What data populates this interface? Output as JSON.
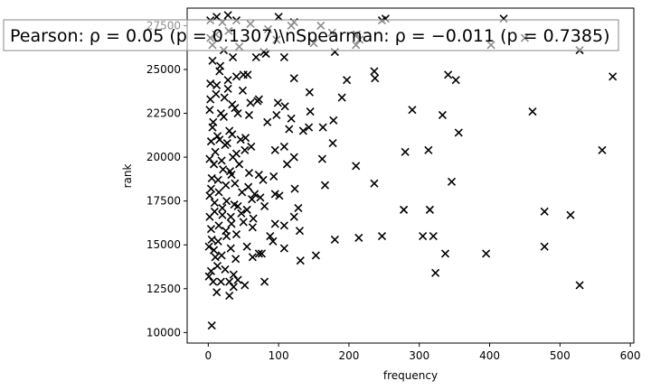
{
  "chart_data": {
    "type": "scatter",
    "title": "",
    "xlabel": "frequency",
    "ylabel": "rank",
    "xlim": [
      -30,
      605
    ],
    "ylim": [
      9400,
      28500
    ],
    "xticks": [
      0,
      100,
      200,
      300,
      400,
      500,
      600
    ],
    "xtick_labels": [
      "0",
      "100",
      "200",
      "300",
      "400",
      "500",
      "600"
    ],
    "yticks": [
      10000,
      12500,
      15000,
      17500,
      20000,
      22500,
      25000,
      27500
    ],
    "ytick_labels": [
      "10000",
      "12500",
      "15000",
      "17500",
      "20000",
      "22500",
      "25000",
      "27500"
    ],
    "grid": false,
    "legend": "none",
    "marker": "x",
    "marker_color": "#000000",
    "annotation": "Pearson: ρ = 0.05 (p = 0.1307)\\nSpearman: ρ = −0.011 (p = 0.7385)",
    "series": [
      {
        "points": [
          [
            575,
            24600
          ],
          [
            560,
            20400
          ],
          [
            528,
            26100
          ],
          [
            528,
            12700
          ],
          [
            515,
            16700
          ],
          [
            478,
            16900
          ],
          [
            478,
            14900
          ],
          [
            461,
            22600
          ],
          [
            450,
            26800
          ],
          [
            420,
            27900
          ],
          [
            402,
            26400
          ],
          [
            395,
            14500
          ],
          [
            356,
            21400
          ],
          [
            352,
            24400
          ],
          [
            346,
            18600
          ],
          [
            341,
            24700
          ],
          [
            333,
            22400
          ],
          [
            337,
            14500
          ],
          [
            323,
            13400
          ],
          [
            320,
            15500
          ],
          [
            315,
            17000
          ],
          [
            313,
            20400
          ],
          [
            305,
            15500
          ],
          [
            290,
            22700
          ],
          [
            280,
            20300
          ],
          [
            278,
            17000
          ],
          [
            252,
            27900
          ],
          [
            247,
            15500
          ],
          [
            237,
            24500
          ],
          [
            236,
            24900
          ],
          [
            236,
            18500
          ],
          [
            214,
            15400
          ],
          [
            215,
            26700
          ],
          [
            210,
            26400
          ],
          [
            210,
            19500
          ],
          [
            197,
            24400
          ],
          [
            190,
            23400
          ],
          [
            180,
            26000
          ],
          [
            177,
            20800
          ],
          [
            178,
            22100
          ],
          [
            180,
            15300
          ],
          [
            176,
            27100
          ],
          [
            166,
            18400
          ],
          [
            163,
            21700
          ],
          [
            162,
            19900
          ],
          [
            153,
            14400
          ],
          [
            150,
            26500
          ],
          [
            145,
            22600
          ],
          [
            143,
            21700
          ],
          [
            144,
            23700
          ],
          [
            135,
            21500
          ],
          [
            131,
            14100
          ],
          [
            130,
            15800
          ],
          [
            128,
            17100
          ],
          [
            122,
            16600
          ],
          [
            123,
            18200
          ],
          [
            122,
            20000
          ],
          [
            122,
            24500
          ],
          [
            118,
            22200
          ],
          [
            115,
            21600
          ],
          [
            118,
            27500
          ],
          [
            112,
            19600
          ],
          [
            109,
            22900
          ],
          [
            108,
            20600
          ],
          [
            108,
            25700
          ],
          [
            108,
            16100
          ],
          [
            108,
            14800
          ],
          [
            101,
            17800
          ],
          [
            99,
            23100
          ],
          [
            97,
            22400
          ],
          [
            97,
            26700
          ],
          [
            95,
            20400
          ],
          [
            93,
            18900
          ],
          [
            95,
            17900
          ],
          [
            95,
            16200
          ],
          [
            92,
            15200
          ],
          [
            88,
            15500
          ],
          [
            84,
            22000
          ],
          [
            82,
            25900
          ],
          [
            80,
            17200
          ],
          [
            80,
            12900
          ],
          [
            79,
            26000
          ],
          [
            78,
            18700
          ],
          [
            76,
            14500
          ],
          [
            74,
            17700
          ],
          [
            72,
            23300
          ],
          [
            72,
            14500
          ],
          [
            72,
            19000
          ],
          [
            70,
            23200
          ],
          [
            68,
            25700
          ],
          [
            64,
            16500
          ],
          [
            63,
            16000
          ],
          [
            62,
            17600
          ],
          [
            63,
            14300
          ],
          [
            60,
            23100
          ],
          [
            58,
            22400
          ],
          [
            58,
            19100
          ],
          [
            56,
            24700
          ],
          [
            55,
            17000
          ],
          [
            55,
            14900
          ],
          [
            52,
            20400
          ],
          [
            52,
            12700
          ],
          [
            50,
            24700
          ],
          [
            50,
            16300
          ],
          [
            48,
            18000
          ],
          [
            46,
            21000
          ],
          [
            44,
            26300
          ],
          [
            42,
            17200
          ],
          [
            42,
            13000
          ],
          [
            40,
            24600
          ],
          [
            40,
            20200
          ],
          [
            40,
            15600
          ],
          [
            38,
            22800
          ],
          [
            38,
            18500
          ],
          [
            36,
            13300
          ],
          [
            36,
            12600
          ],
          [
            35,
            25700
          ],
          [
            34,
            21300
          ],
          [
            33,
            19000
          ],
          [
            33,
            16200
          ],
          [
            32,
            14800
          ],
          [
            30,
            12900
          ],
          [
            30,
            12100
          ],
          [
            29,
            27200
          ],
          [
            28,
            23900
          ],
          [
            27,
            20800
          ],
          [
            26,
            17500
          ],
          [
            25,
            15800
          ],
          [
            24,
            13600
          ],
          [
            22,
            26100
          ],
          [
            22,
            22300
          ],
          [
            21,
            19300
          ],
          [
            20,
            16700
          ],
          [
            19,
            14400
          ],
          [
            18,
            12900
          ],
          [
            16,
            24900
          ],
          [
            16,
            21000
          ],
          [
            15,
            18000
          ],
          [
            14,
            15200
          ],
          [
            13,
            13800
          ],
          [
            12,
            12300
          ],
          [
            11,
            27000
          ],
          [
            11,
            23600
          ],
          [
            10,
            20300
          ],
          [
            9,
            17400
          ],
          [
            8,
            14700
          ],
          [
            7,
            12900
          ],
          [
            6,
            25500
          ],
          [
            6,
            21700
          ],
          [
            5,
            18800
          ],
          [
            4,
            15900
          ],
          [
            4,
            13500
          ],
          [
            5,
            10400
          ],
          [
            3,
            26800
          ],
          [
            3,
            24200
          ],
          [
            2,
            22700
          ],
          [
            2,
            19900
          ],
          [
            2,
            17800
          ],
          [
            2,
            16600
          ],
          [
            1,
            14900
          ],
          [
            1,
            13200
          ],
          [
            3,
            27800
          ],
          [
            3,
            23300
          ],
          [
            4,
            20900
          ],
          [
            4,
            18200
          ],
          [
            5,
            15300
          ],
          [
            6,
            26400
          ],
          [
            7,
            22000
          ],
          [
            8,
            19600
          ],
          [
            9,
            16900
          ],
          [
            10,
            14300
          ],
          [
            12,
            24100
          ],
          [
            13,
            21200
          ],
          [
            14,
            18700
          ],
          [
            15,
            16100
          ],
          [
            17,
            25200
          ],
          [
            18,
            22500
          ],
          [
            19,
            19800
          ],
          [
            20,
            17100
          ],
          [
            23,
            23400
          ],
          [
            24,
            20700
          ],
          [
            25,
            18400
          ],
          [
            26,
            15500
          ],
          [
            28,
            24400
          ],
          [
            30,
            21500
          ],
          [
            31,
            19200
          ],
          [
            32,
            16600
          ],
          [
            34,
            23000
          ],
          [
            35,
            20000
          ],
          [
            37,
            17300
          ],
          [
            39,
            14200
          ],
          [
            42,
            22500
          ],
          [
            44,
            19600
          ],
          [
            47,
            16800
          ],
          [
            49,
            23800
          ],
          [
            53,
            21100
          ],
          [
            57,
            18300
          ],
          [
            61,
            20600
          ],
          [
            66,
            17900
          ],
          [
            12,
            28000
          ],
          [
            20,
            27700
          ],
          [
            28,
            28100
          ],
          [
            40,
            27800
          ],
          [
            60,
            27600
          ],
          [
            85,
            27300
          ],
          [
            100,
            28000
          ],
          [
            122,
            27700
          ],
          [
            160,
            27500
          ],
          [
            211,
            27000
          ],
          [
            247,
            27800
          ]
        ]
      }
    ]
  }
}
